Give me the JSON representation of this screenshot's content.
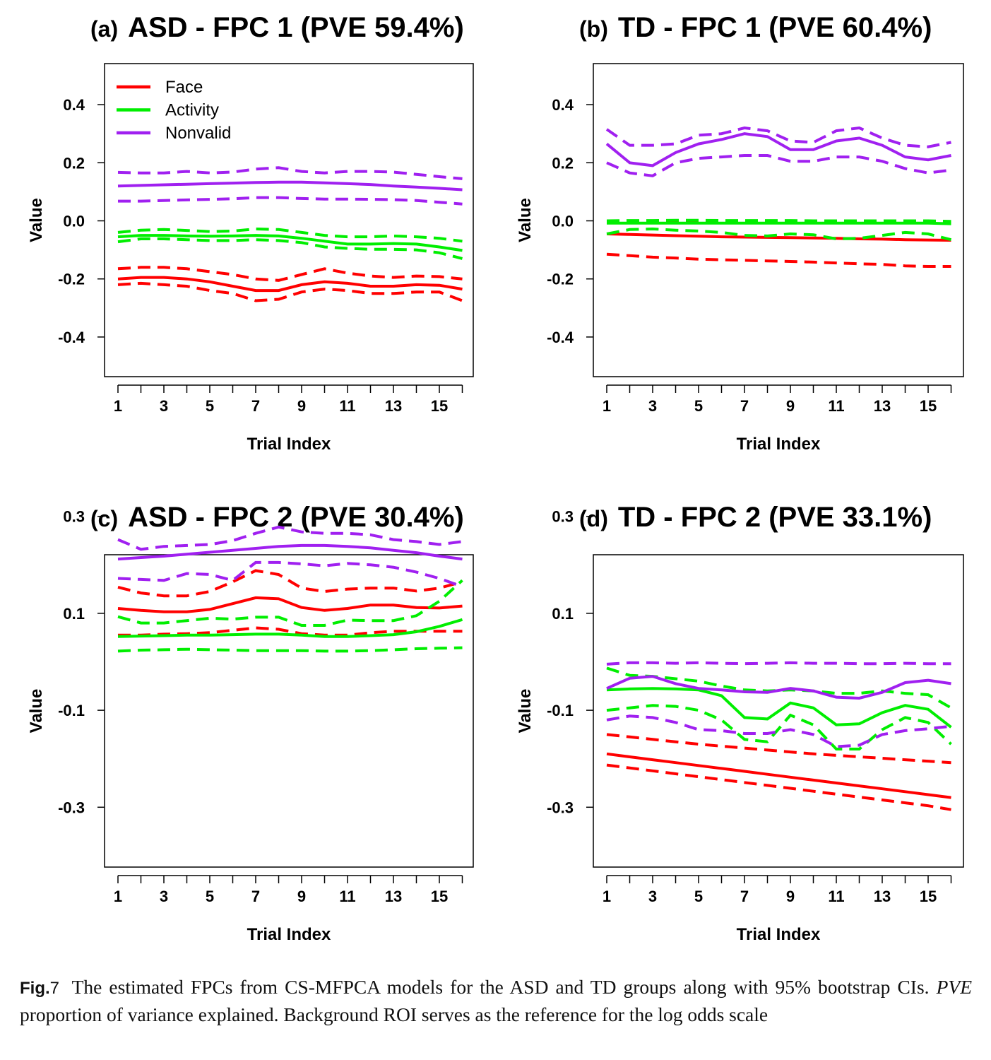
{
  "legend": [
    {
      "label": "Face",
      "color": "#ff0000"
    },
    {
      "label": "Activity",
      "color": "#00ee00"
    },
    {
      "label": "Nonvalid",
      "color": "#a020f0"
    }
  ],
  "chart_data": [
    {
      "type": "line",
      "panel_label": "(a)",
      "title": "ASD - FPC 1 (PVE 59.4%)",
      "xlabel": "Trial Index",
      "ylabel": "Value",
      "x": [
        1,
        2,
        3,
        4,
        5,
        6,
        7,
        8,
        9,
        10,
        11,
        12,
        13,
        14,
        15,
        16
      ],
      "x_ticks": [
        1,
        2,
        3,
        4,
        5,
        6,
        7,
        8,
        9,
        10,
        11,
        12,
        13,
        14,
        15,
        16
      ],
      "x_tick_labels": [
        "1",
        "3",
        "5",
        "7",
        "9",
        "11",
        "13",
        "15"
      ],
      "y_ticks": [
        "0.4",
        "0.2",
        "0.0",
        "-0.2",
        "-0.4"
      ],
      "ylim": [
        -0.54,
        0.54
      ],
      "legend": true,
      "series": [
        {
          "name": "Face",
          "color": "#ff0000",
          "estimate": [
            -0.2,
            -0.195,
            -0.195,
            -0.2,
            -0.21,
            -0.225,
            -0.24,
            -0.24,
            -0.22,
            -0.21,
            -0.215,
            -0.225,
            -0.225,
            -0.22,
            -0.222,
            -0.235
          ],
          "lower": [
            -0.22,
            -0.215,
            -0.22,
            -0.225,
            -0.24,
            -0.25,
            -0.275,
            -0.27,
            -0.245,
            -0.235,
            -0.24,
            -0.25,
            -0.25,
            -0.245,
            -0.245,
            -0.275
          ],
          "upper": [
            -0.165,
            -0.16,
            -0.16,
            -0.165,
            -0.175,
            -0.185,
            -0.2,
            -0.205,
            -0.185,
            -0.165,
            -0.18,
            -0.19,
            -0.195,
            -0.19,
            -0.192,
            -0.2
          ]
        },
        {
          "name": "Activity",
          "color": "#00ee00",
          "estimate": [
            -0.055,
            -0.05,
            -0.05,
            -0.052,
            -0.053,
            -0.052,
            -0.05,
            -0.052,
            -0.06,
            -0.07,
            -0.08,
            -0.08,
            -0.078,
            -0.08,
            -0.09,
            -0.102
          ],
          "lower": [
            -0.072,
            -0.062,
            -0.062,
            -0.065,
            -0.068,
            -0.068,
            -0.065,
            -0.068,
            -0.075,
            -0.09,
            -0.095,
            -0.098,
            -0.098,
            -0.1,
            -0.11,
            -0.13
          ],
          "upper": [
            -0.04,
            -0.032,
            -0.03,
            -0.033,
            -0.037,
            -0.035,
            -0.028,
            -0.03,
            -0.04,
            -0.05,
            -0.055,
            -0.055,
            -0.052,
            -0.055,
            -0.06,
            -0.07
          ]
        },
        {
          "name": "Nonvalid",
          "color": "#a020f0",
          "estimate": [
            0.12,
            0.122,
            0.124,
            0.126,
            0.128,
            0.13,
            0.132,
            0.133,
            0.133,
            0.131,
            0.128,
            0.125,
            0.12,
            0.116,
            0.112,
            0.107
          ],
          "lower": [
            0.068,
            0.068,
            0.07,
            0.072,
            0.074,
            0.076,
            0.08,
            0.08,
            0.077,
            0.075,
            0.075,
            0.074,
            0.073,
            0.07,
            0.064,
            0.058
          ],
          "upper": [
            0.167,
            0.165,
            0.165,
            0.17,
            0.165,
            0.168,
            0.178,
            0.183,
            0.17,
            0.165,
            0.17,
            0.17,
            0.168,
            0.16,
            0.152,
            0.145
          ]
        }
      ]
    },
    {
      "type": "line",
      "panel_label": "(b)",
      "title": "TD - FPC 1 (PVE 60.4%)",
      "xlabel": "Trial Index",
      "ylabel": "Value",
      "x": [
        1,
        2,
        3,
        4,
        5,
        6,
        7,
        8,
        9,
        10,
        11,
        12,
        13,
        14,
        15,
        16
      ],
      "x_ticks": [
        1,
        2,
        3,
        4,
        5,
        6,
        7,
        8,
        9,
        10,
        11,
        12,
        13,
        14,
        15,
        16
      ],
      "x_tick_labels": [
        "1",
        "3",
        "5",
        "7",
        "9",
        "11",
        "13",
        "15"
      ],
      "y_ticks": [
        "0.4",
        "0.2",
        "0.0",
        "-0.2",
        "-0.4"
      ],
      "ylim": [
        -0.54,
        0.54
      ],
      "legend": false,
      "series": [
        {
          "name": "Face",
          "color": "#ff0000",
          "estimate": [
            -0.045,
            -0.047,
            -0.049,
            -0.051,
            -0.053,
            -0.055,
            -0.056,
            -0.057,
            -0.058,
            -0.059,
            -0.06,
            -0.062,
            -0.063,
            -0.065,
            -0.066,
            -0.067
          ],
          "lower": [
            -0.115,
            -0.12,
            -0.125,
            -0.128,
            -0.132,
            -0.134,
            -0.136,
            -0.138,
            -0.14,
            -0.142,
            -0.145,
            -0.148,
            -0.15,
            -0.155,
            -0.157,
            -0.157
          ],
          "upper": [
            -0.003,
            -0.003,
            -0.004,
            -0.004,
            -0.004,
            -0.004,
            -0.005,
            -0.005,
            -0.005,
            -0.005,
            -0.006,
            -0.006,
            -0.006,
            -0.006,
            -0.006,
            -0.006
          ]
        },
        {
          "name": "Activity",
          "color": "#00ee00",
          "estimate": [
            -0.008,
            -0.008,
            -0.008,
            -0.008,
            -0.008,
            -0.008,
            -0.008,
            -0.008,
            -0.008,
            -0.008,
            -0.008,
            -0.008,
            -0.008,
            -0.008,
            -0.008,
            -0.01
          ],
          "lower": [
            -0.045,
            -0.03,
            -0.028,
            -0.032,
            -0.035,
            -0.04,
            -0.05,
            -0.052,
            -0.045,
            -0.048,
            -0.062,
            -0.06,
            -0.05,
            -0.04,
            -0.045,
            -0.065
          ],
          "upper": [
            0.0,
            0.001,
            0.001,
            0.002,
            0.002,
            0.001,
            0.001,
            0.001,
            0.001,
            0.0,
            0.0,
            0.0,
            0.0,
            0.0,
            0.0,
            -0.002
          ]
        },
        {
          "name": "Nonvalid",
          "color": "#a020f0",
          "estimate": [
            0.265,
            0.2,
            0.19,
            0.235,
            0.265,
            0.28,
            0.3,
            0.29,
            0.245,
            0.245,
            0.275,
            0.285,
            0.26,
            0.22,
            0.21,
            0.225
          ],
          "lower": [
            0.2,
            0.165,
            0.155,
            0.2,
            0.215,
            0.22,
            0.225,
            0.225,
            0.205,
            0.205,
            0.22,
            0.22,
            0.205,
            0.18,
            0.165,
            0.175
          ],
          "upper": [
            0.315,
            0.26,
            0.26,
            0.265,
            0.295,
            0.3,
            0.32,
            0.31,
            0.275,
            0.27,
            0.31,
            0.32,
            0.285,
            0.26,
            0.255,
            0.27
          ]
        }
      ]
    },
    {
      "type": "line",
      "panel_label": "(c)",
      "title": "ASD - FPC 2 (PVE 30.4%)",
      "xlabel": "Trial Index",
      "ylabel": "Value",
      "x": [
        1,
        2,
        3,
        4,
        5,
        6,
        7,
        8,
        9,
        10,
        11,
        12,
        13,
        14,
        15,
        16
      ],
      "x_ticks": [
        1,
        2,
        3,
        4,
        5,
        6,
        7,
        8,
        9,
        10,
        11,
        12,
        13,
        14,
        15,
        16
      ],
      "x_tick_labels": [
        "1",
        "3",
        "5",
        "7",
        "9",
        "11",
        "13",
        "15"
      ],
      "y_ticks": [
        "0.3",
        "0.1",
        "-0.1",
        "-0.3"
      ],
      "ylim": [
        -0.32,
        0.32
      ],
      "legend": false,
      "series": [
        {
          "name": "Face",
          "color": "#ff0000",
          "estimate": [
            0.11,
            0.106,
            0.103,
            0.103,
            0.108,
            0.12,
            0.132,
            0.13,
            0.112,
            0.106,
            0.11,
            0.117,
            0.117,
            0.112,
            0.111,
            0.115
          ],
          "lower": [
            0.055,
            0.055,
            0.057,
            0.058,
            0.06,
            0.065,
            0.07,
            0.067,
            0.058,
            0.055,
            0.055,
            0.06,
            0.063,
            0.063,
            0.063,
            0.063
          ],
          "upper": [
            0.154,
            0.142,
            0.136,
            0.136,
            0.145,
            0.165,
            0.188,
            0.18,
            0.152,
            0.145,
            0.15,
            0.152,
            0.152,
            0.146,
            0.152,
            0.165
          ]
        },
        {
          "name": "Activity",
          "color": "#00ee00",
          "estimate": [
            0.052,
            0.053,
            0.054,
            0.055,
            0.055,
            0.056,
            0.057,
            0.057,
            0.055,
            0.052,
            0.052,
            0.054,
            0.056,
            0.062,
            0.073,
            0.087
          ],
          "lower": [
            0.022,
            0.024,
            0.025,
            0.026,
            0.025,
            0.024,
            0.023,
            0.023,
            0.023,
            0.022,
            0.022,
            0.023,
            0.025,
            0.027,
            0.028,
            0.029
          ],
          "upper": [
            0.093,
            0.08,
            0.08,
            0.085,
            0.09,
            0.088,
            0.092,
            0.092,
            0.075,
            0.075,
            0.086,
            0.085,
            0.085,
            0.095,
            0.125,
            0.168
          ]
        },
        {
          "name": "Nonvalid",
          "color": "#a020f0",
          "estimate": [
            0.212,
            0.215,
            0.218,
            0.222,
            0.226,
            0.23,
            0.234,
            0.238,
            0.24,
            0.24,
            0.238,
            0.235,
            0.23,
            0.225,
            0.218,
            0.212
          ],
          "lower": [
            0.172,
            0.17,
            0.168,
            0.182,
            0.18,
            0.168,
            0.205,
            0.205,
            0.202,
            0.198,
            0.203,
            0.2,
            0.195,
            0.185,
            0.172,
            0.155
          ],
          "upper": [
            0.252,
            0.232,
            0.238,
            0.24,
            0.242,
            0.25,
            0.265,
            0.278,
            0.268,
            0.265,
            0.265,
            0.262,
            0.252,
            0.248,
            0.242,
            0.248
          ]
        }
      ]
    },
    {
      "type": "line",
      "panel_label": "(d)",
      "title": "TD - FPC 2 (PVE 33.1%)",
      "xlabel": "Trial Index",
      "ylabel": "Value",
      "x": [
        1,
        2,
        3,
        4,
        5,
        6,
        7,
        8,
        9,
        10,
        11,
        12,
        13,
        14,
        15,
        16
      ],
      "x_ticks": [
        1,
        2,
        3,
        4,
        5,
        6,
        7,
        8,
        9,
        10,
        11,
        12,
        13,
        14,
        15,
        16
      ],
      "x_tick_labels": [
        "1",
        "3",
        "5",
        "7",
        "9",
        "11",
        "13",
        "15"
      ],
      "y_ticks": [
        "0.3",
        "0.1",
        "-0.1",
        "-0.3"
      ],
      "ylim": [
        -0.32,
        0.32
      ],
      "legend": false,
      "series": [
        {
          "name": "Face",
          "color": "#ff0000",
          "estimate": [
            -0.19,
            -0.196,
            -0.202,
            -0.208,
            -0.214,
            -0.22,
            -0.226,
            -0.232,
            -0.238,
            -0.244,
            -0.25,
            -0.256,
            -0.262,
            -0.268,
            -0.274,
            -0.28
          ],
          "lower": [
            -0.213,
            -0.219,
            -0.225,
            -0.231,
            -0.237,
            -0.243,
            -0.249,
            -0.255,
            -0.261,
            -0.267,
            -0.273,
            -0.279,
            -0.285,
            -0.291,
            -0.297,
            -0.305
          ],
          "upper": [
            -0.15,
            -0.155,
            -0.16,
            -0.165,
            -0.17,
            -0.174,
            -0.178,
            -0.182,
            -0.186,
            -0.19,
            -0.193,
            -0.196,
            -0.199,
            -0.202,
            -0.205,
            -0.208
          ]
        },
        {
          "name": "Activity",
          "color": "#00ee00",
          "estimate": [
            -0.058,
            -0.056,
            -0.055,
            -0.056,
            -0.058,
            -0.07,
            -0.115,
            -0.118,
            -0.085,
            -0.095,
            -0.13,
            -0.128,
            -0.105,
            -0.09,
            -0.098,
            -0.135
          ],
          "lower": [
            -0.1,
            -0.095,
            -0.09,
            -0.092,
            -0.1,
            -0.12,
            -0.16,
            -0.165,
            -0.11,
            -0.13,
            -0.18,
            -0.18,
            -0.14,
            -0.115,
            -0.125,
            -0.17
          ],
          "upper": [
            -0.013,
            -0.028,
            -0.03,
            -0.035,
            -0.04,
            -0.05,
            -0.058,
            -0.06,
            -0.058,
            -0.06,
            -0.065,
            -0.065,
            -0.06,
            -0.065,
            -0.068,
            -0.095
          ]
        },
        {
          "name": "Nonvalid",
          "color": "#a020f0",
          "estimate": [
            -0.055,
            -0.034,
            -0.03,
            -0.045,
            -0.055,
            -0.058,
            -0.062,
            -0.063,
            -0.055,
            -0.06,
            -0.073,
            -0.075,
            -0.063,
            -0.043,
            -0.038,
            -0.045
          ],
          "lower": [
            -0.12,
            -0.112,
            -0.115,
            -0.125,
            -0.14,
            -0.142,
            -0.148,
            -0.148,
            -0.14,
            -0.15,
            -0.175,
            -0.172,
            -0.15,
            -0.142,
            -0.138,
            -0.133
          ],
          "upper": [
            -0.005,
            -0.002,
            -0.002,
            -0.003,
            -0.002,
            -0.003,
            -0.004,
            -0.003,
            -0.002,
            -0.003,
            -0.003,
            -0.004,
            -0.004,
            -0.003,
            -0.004,
            -0.004
          ]
        }
      ]
    }
  ],
  "caption": {
    "label": "Fig.",
    "number": "7",
    "text_1": "The estimated FPCs from CS-MFPCA models for the ASD and TD groups along with 95% bootstrap CIs.",
    "pve_abbrev": "PVE",
    "text_2": "proportion of variance explained. Background ROI serves as the reference for the log odds scale"
  }
}
